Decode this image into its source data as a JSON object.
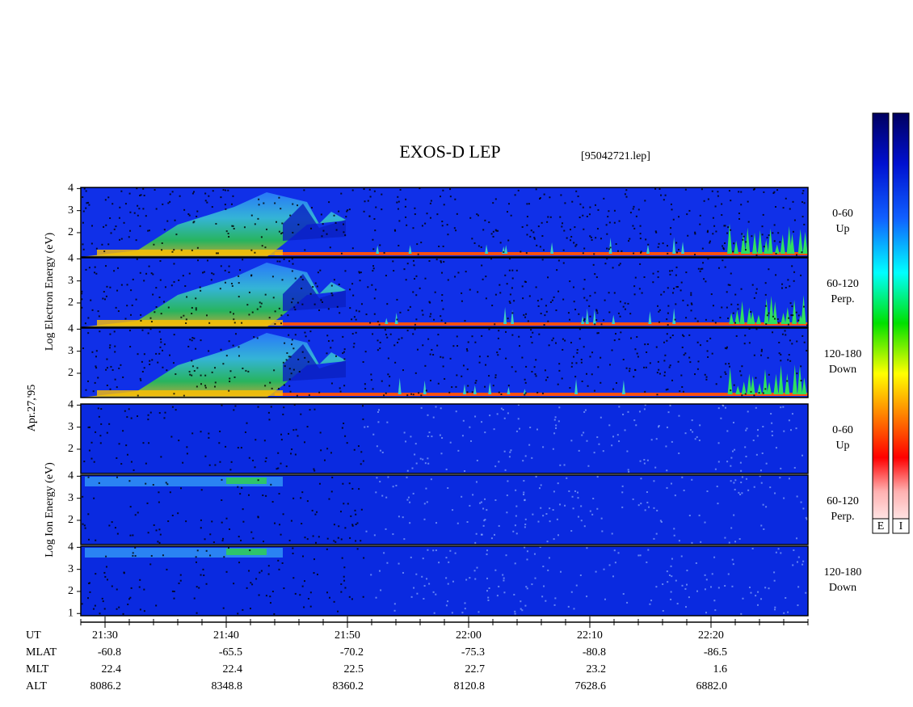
{
  "chart_data": {
    "type": "spectrogram",
    "title": "EXOS-D LEP",
    "subtitle": "[95042721.lep]",
    "date": "Apr.27,'95",
    "groups": [
      {
        "label": "Log Electron Energy (eV)",
        "panels": [
          {
            "pitch": "0-60",
            "direction": "Up",
            "ylim": [
              0.9,
              4.05
            ],
            "yticks": [
              2,
              3,
              4
            ]
          },
          {
            "pitch": "60-120",
            "direction": "Perp.",
            "ylim": [
              0.9,
              4.05
            ],
            "yticks": [
              2,
              3,
              4
            ]
          },
          {
            "pitch": "120-180",
            "direction": "Down",
            "ylim": [
              0.9,
              4.05
            ],
            "yticks": [
              2,
              3,
              4
            ]
          }
        ]
      },
      {
        "label": "Log Ion Energy (eV)",
        "panels": [
          {
            "pitch": "0-60",
            "direction": "Up",
            "ylim": [
              0.9,
              4.05
            ],
            "yticks": [
              2,
              3,
              4
            ]
          },
          {
            "pitch": "60-120",
            "direction": "Perp.",
            "ylim": [
              0.9,
              4.05
            ],
            "yticks": [
              2,
              3,
              4
            ]
          },
          {
            "pitch": "120-180",
            "direction": "Down",
            "ylim": [
              0.9,
              4.05
            ],
            "yticks": [
              1,
              2,
              3,
              4
            ]
          }
        ]
      }
    ],
    "x": {
      "label": "UT",
      "categories": [
        "21:30",
        "21:40",
        "21:50",
        "22:00",
        "22:10",
        "22:20"
      ]
    },
    "rows": [
      {
        "label": "MLAT",
        "values": [
          "-60.8",
          "-65.5",
          "-70.2",
          "-75.3",
          "-80.8",
          "-86.5"
        ]
      },
      {
        "label": "MLT",
        "values": [
          "22.4",
          "22.4",
          "22.5",
          "22.7",
          "23.2",
          "1.6"
        ]
      },
      {
        "label": "ALT",
        "values": [
          "8086.2",
          "8348.8",
          "8360.2",
          "8120.8",
          "7628.6",
          "6882.0"
        ]
      }
    ],
    "colorbars": [
      "E",
      "I"
    ]
  }
}
